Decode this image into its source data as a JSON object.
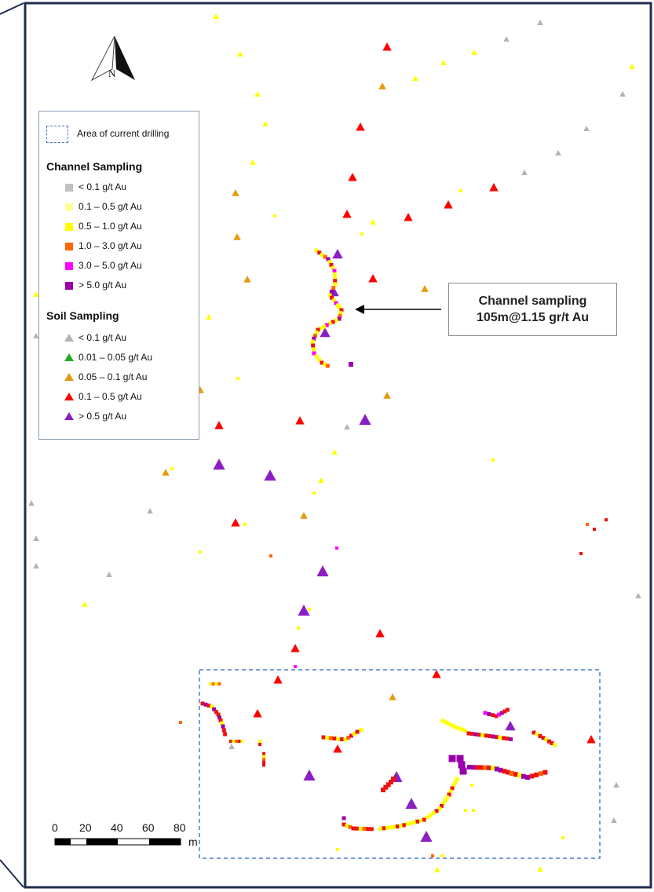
{
  "legend": {
    "drilling_area_label": "Area of current drilling",
    "channel_heading": "Channel Sampling",
    "channel_items": [
      {
        "label": "< 0.1 g/t Au",
        "color": "#c0c0c0"
      },
      {
        "label": "0.1 – 0.5 g/t Au",
        "color": "#ffff99"
      },
      {
        "label": "0.5 – 1.0 g/t Au",
        "color": "#ffff00"
      },
      {
        "label": "1.0 – 3.0 g/t Au",
        "color": "#ff6600"
      },
      {
        "label": "3.0 – 5.0 g/t Au",
        "color": "#ff00ff"
      },
      {
        "label": "> 5.0 g/t Au",
        "color": "#9900aa"
      }
    ],
    "soil_heading": "Soil Sampling",
    "soil_items": [
      {
        "label": "< 0.1 g/t Au",
        "color": "#b3b3b3"
      },
      {
        "label": "0.01 – 0.05 g/t Au",
        "color": "#22aa22"
      },
      {
        "label": "0.05 – 0.1 g/t Au",
        "color": "#e69a10"
      },
      {
        "label": "0.1 – 0.5 g/t Au",
        "color": "#ff0000"
      },
      {
        "label": "> 0.5 g/t Au",
        "color": "#8a1fc4"
      }
    ]
  },
  "callout": {
    "line1": "Channel sampling",
    "line2": "105m@1.15 gr/t Au"
  },
  "north_arrow": {
    "label": "N"
  },
  "scale_bar": {
    "ticks": [
      "0",
      "20",
      "40",
      "60",
      "80"
    ],
    "unit": "m"
  },
  "colors": {
    "frame": "#1f2d4d",
    "drilling_box": "#4a7cc7",
    "arrow": "#000000"
  }
}
